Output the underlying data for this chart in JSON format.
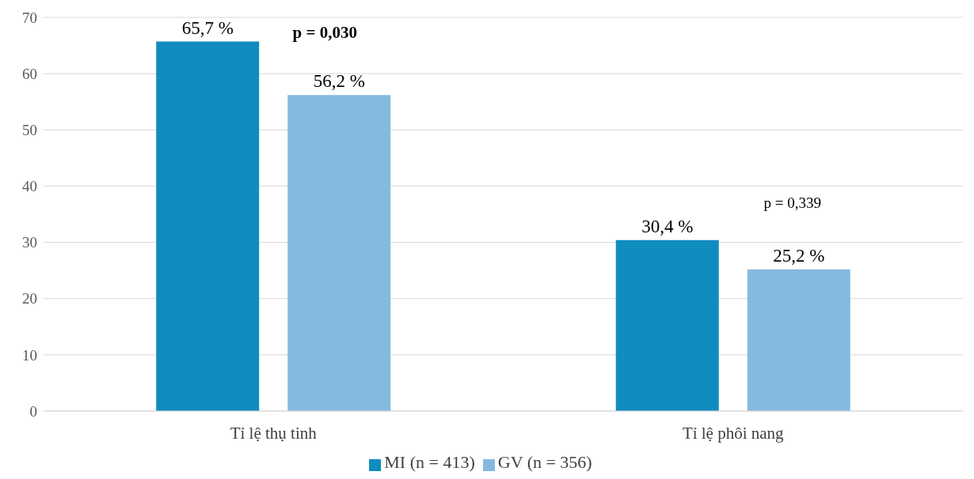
{
  "chart_data": {
    "type": "bar",
    "categories": [
      "Tỉ lệ thụ tinh",
      "Tỉ lệ phôi nang"
    ],
    "series": [
      {
        "name": "MI (n = 413)",
        "color": "#108cbe",
        "values": [
          65.7,
          30.4
        ],
        "value_labels": [
          "65,7 %",
          "30,4 %"
        ]
      },
      {
        "name": "GV (n = 356)",
        "color": "#86b9df",
        "values": [
          56.2,
          25.2
        ],
        "value_labels": [
          "56,2 %",
          "25,2 %"
        ]
      }
    ],
    "ylim": [
      0,
      70
    ],
    "yticks": [
      0,
      10,
      20,
      30,
      40,
      50,
      60,
      70
    ],
    "grid": "y",
    "legend": "bottom",
    "annotations": [
      "p = 0,030",
      "p = 0,339"
    ]
  }
}
